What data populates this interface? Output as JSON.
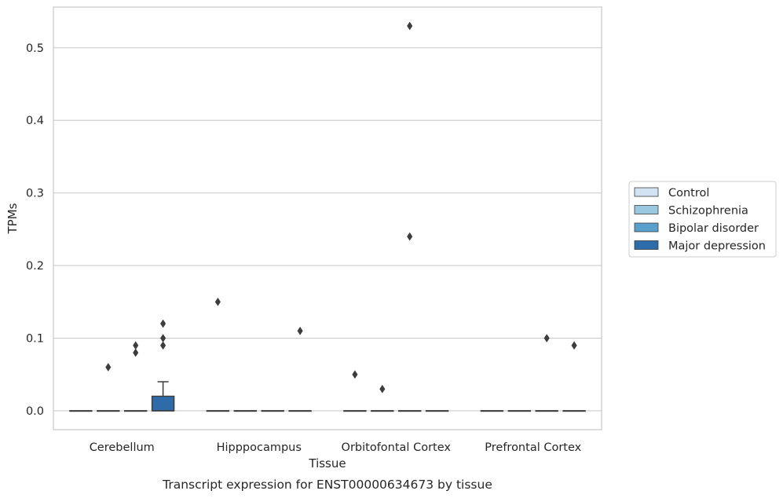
{
  "caption": "Transcript expression for ENST00000634673 by tissue",
  "chart_data": {
    "type": "box",
    "title": "",
    "xlabel": "Tissue",
    "ylabel": "TPMs",
    "ylim": [
      -0.026,
      0.556
    ],
    "yticks": [
      0.0,
      0.1,
      0.2,
      0.3,
      0.4,
      0.5
    ],
    "ytick_labels": [
      "0.0",
      "0.1",
      "0.2",
      "0.3",
      "0.4",
      "0.5"
    ],
    "grid": "horizontal",
    "legend_position": "right",
    "categories": [
      "Cerebellum",
      "Hipppocampus",
      "Orbitofontal Cortex",
      "Prefrontal Cortex"
    ],
    "series": [
      {
        "name": "Control",
        "color": "#d2e3f3",
        "boxes": [
          {
            "q1": 0,
            "median": 0,
            "q3": 0,
            "whislo": 0,
            "whishi": 0,
            "fliers": []
          },
          {
            "q1": 0,
            "median": 0,
            "q3": 0,
            "whislo": 0,
            "whishi": 0,
            "fliers": [
              0.15
            ]
          },
          {
            "q1": 0,
            "median": 0,
            "q3": 0,
            "whislo": 0,
            "whishi": 0,
            "fliers": [
              0.05
            ]
          },
          {
            "q1": 0,
            "median": 0,
            "q3": 0,
            "whislo": 0,
            "whishi": 0,
            "fliers": []
          }
        ]
      },
      {
        "name": "Schizophrenia",
        "color": "#9ac8e0",
        "boxes": [
          {
            "q1": 0,
            "median": 0,
            "q3": 0,
            "whislo": 0,
            "whishi": 0,
            "fliers": [
              0.06
            ]
          },
          {
            "q1": 0,
            "median": 0,
            "q3": 0,
            "whislo": 0,
            "whishi": 0,
            "fliers": []
          },
          {
            "q1": 0,
            "median": 0,
            "q3": 0,
            "whislo": 0,
            "whishi": 0,
            "fliers": [
              0.03
            ]
          },
          {
            "q1": 0,
            "median": 0,
            "q3": 0,
            "whislo": 0,
            "whishi": 0,
            "fliers": []
          }
        ]
      },
      {
        "name": "Bipolar disorder",
        "color": "#5aa0cd",
        "boxes": [
          {
            "q1": 0,
            "median": 0,
            "q3": 0,
            "whislo": 0,
            "whishi": 0,
            "fliers": [
              0.08,
              0.09
            ]
          },
          {
            "q1": 0,
            "median": 0,
            "q3": 0,
            "whislo": 0,
            "whishi": 0,
            "fliers": []
          },
          {
            "q1": 0,
            "median": 0,
            "q3": 0,
            "whislo": 0,
            "whishi": 0,
            "fliers": [
              0.24,
              0.53
            ]
          },
          {
            "q1": 0,
            "median": 0,
            "q3": 0,
            "whislo": 0,
            "whishi": 0,
            "fliers": [
              0.1
            ]
          }
        ]
      },
      {
        "name": "Major depression",
        "color": "#2d6ca8",
        "boxes": [
          {
            "q1": 0,
            "median": 0,
            "q3": 0.02,
            "whislo": 0,
            "whishi": 0.04,
            "fliers": [
              0.09,
              0.1,
              0.12
            ]
          },
          {
            "q1": 0,
            "median": 0,
            "q3": 0,
            "whislo": 0,
            "whishi": 0,
            "fliers": [
              0.11
            ]
          },
          {
            "q1": 0,
            "median": 0,
            "q3": 0,
            "whislo": 0,
            "whishi": 0,
            "fliers": []
          },
          {
            "q1": 0,
            "median": 0,
            "q3": 0,
            "whislo": 0,
            "whishi": 0,
            "fliers": [
              0.09
            ]
          }
        ]
      }
    ],
    "colors": {
      "frame": "#cccccc",
      "grid": "#cccccc",
      "box_edge": "#3d3d3d",
      "flier": "#3d3d3d",
      "legend_edge": "#cccccc"
    }
  }
}
